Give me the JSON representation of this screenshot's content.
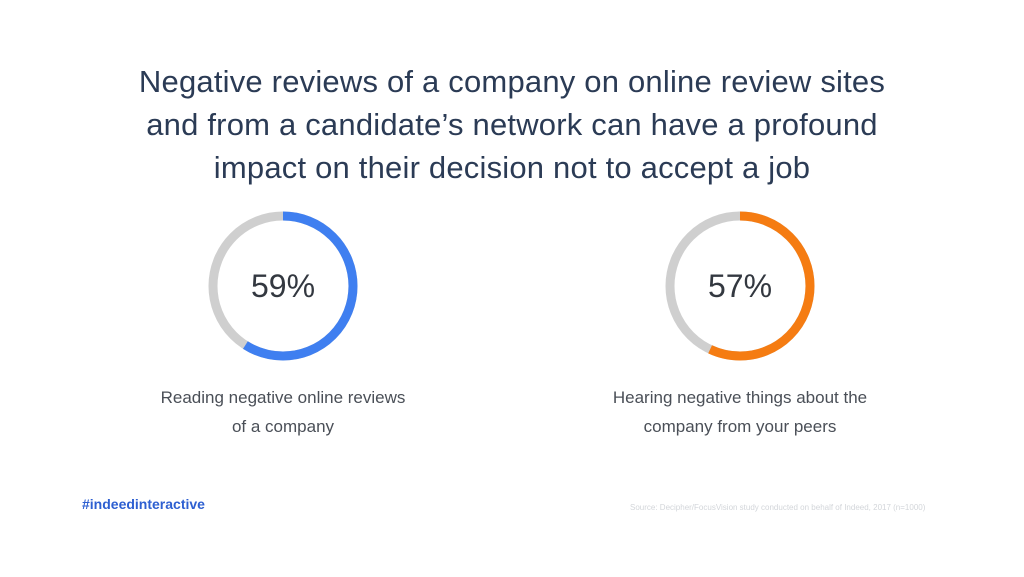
{
  "title_lines": [
    "Negative reviews of a company on online review sites",
    "and from a candidate’s network can have a profound",
    "impact on their decision not to accept a job"
  ],
  "colors": {
    "track": "#cfcfcf",
    "blue": "#3f7ff0",
    "orange": "#f57c12"
  },
  "chart_data": [
    {
      "type": "pie",
      "value_percent": 59,
      "label": "59%",
      "caption_lines": [
        "Reading negative online reviews",
        "of a company"
      ],
      "color": "#3f7ff0"
    },
    {
      "type": "pie",
      "value_percent": 57,
      "label": "57%",
      "caption_lines": [
        "Hearing negative things about the",
        "company from your peers"
      ],
      "color": "#f57c12"
    }
  ],
  "footer": {
    "hashtag": "#indeedinteractive",
    "source": "Source: Decipher/FocusVision study conducted on behalf of Indeed, 2017 (n=1000)"
  }
}
